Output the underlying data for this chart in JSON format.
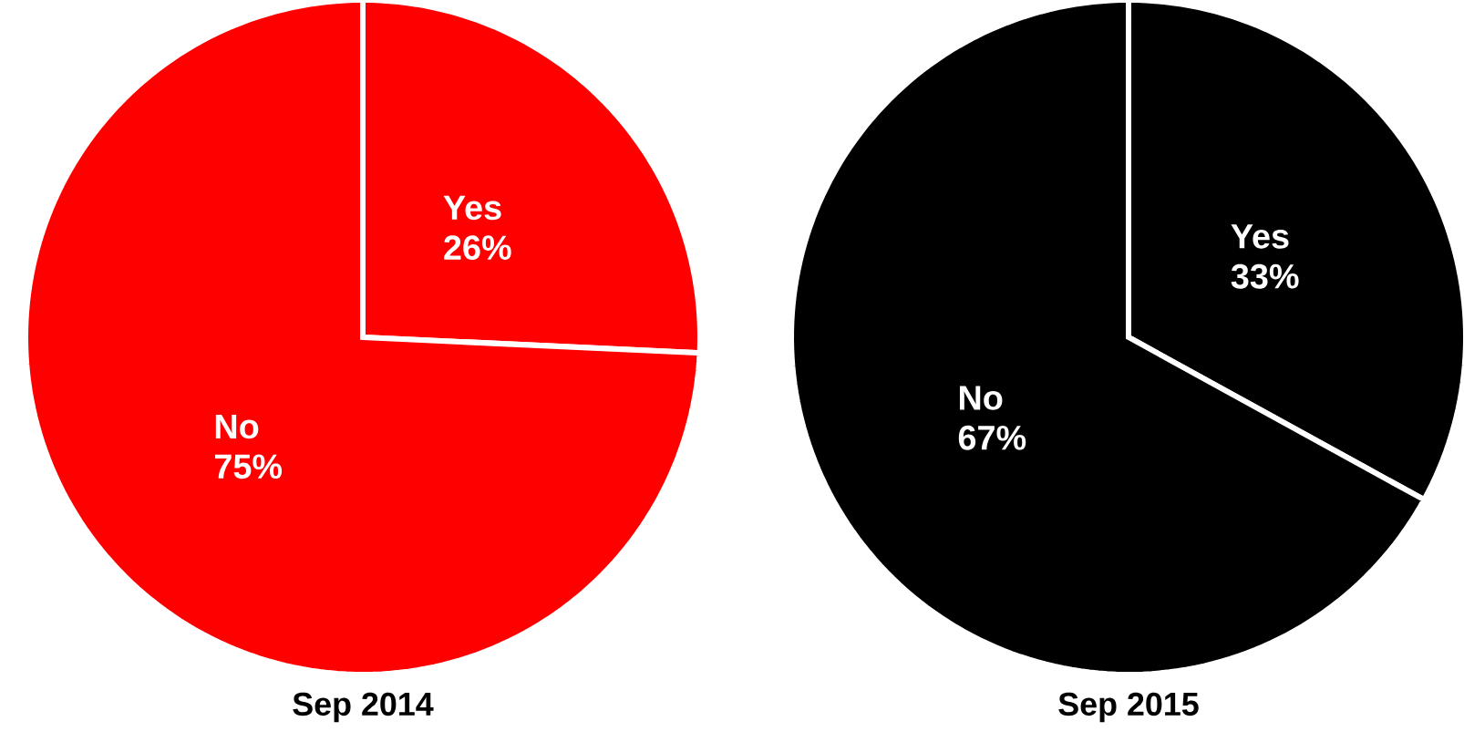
{
  "chart_data": [
    {
      "type": "pie",
      "title": "Sep 2014",
      "categories": [
        "Yes",
        "No"
      ],
      "values": [
        26,
        75
      ],
      "value_labels": [
        "26%",
        "75%"
      ],
      "colors": [
        "#ff0000",
        "#ff0000"
      ]
    },
    {
      "type": "pie",
      "title": "Sep 2015",
      "categories": [
        "Yes",
        "No"
      ],
      "values": [
        33,
        67
      ],
      "value_labels": [
        "33%",
        "67%"
      ],
      "colors": [
        "#000000",
        "#000000"
      ]
    }
  ]
}
